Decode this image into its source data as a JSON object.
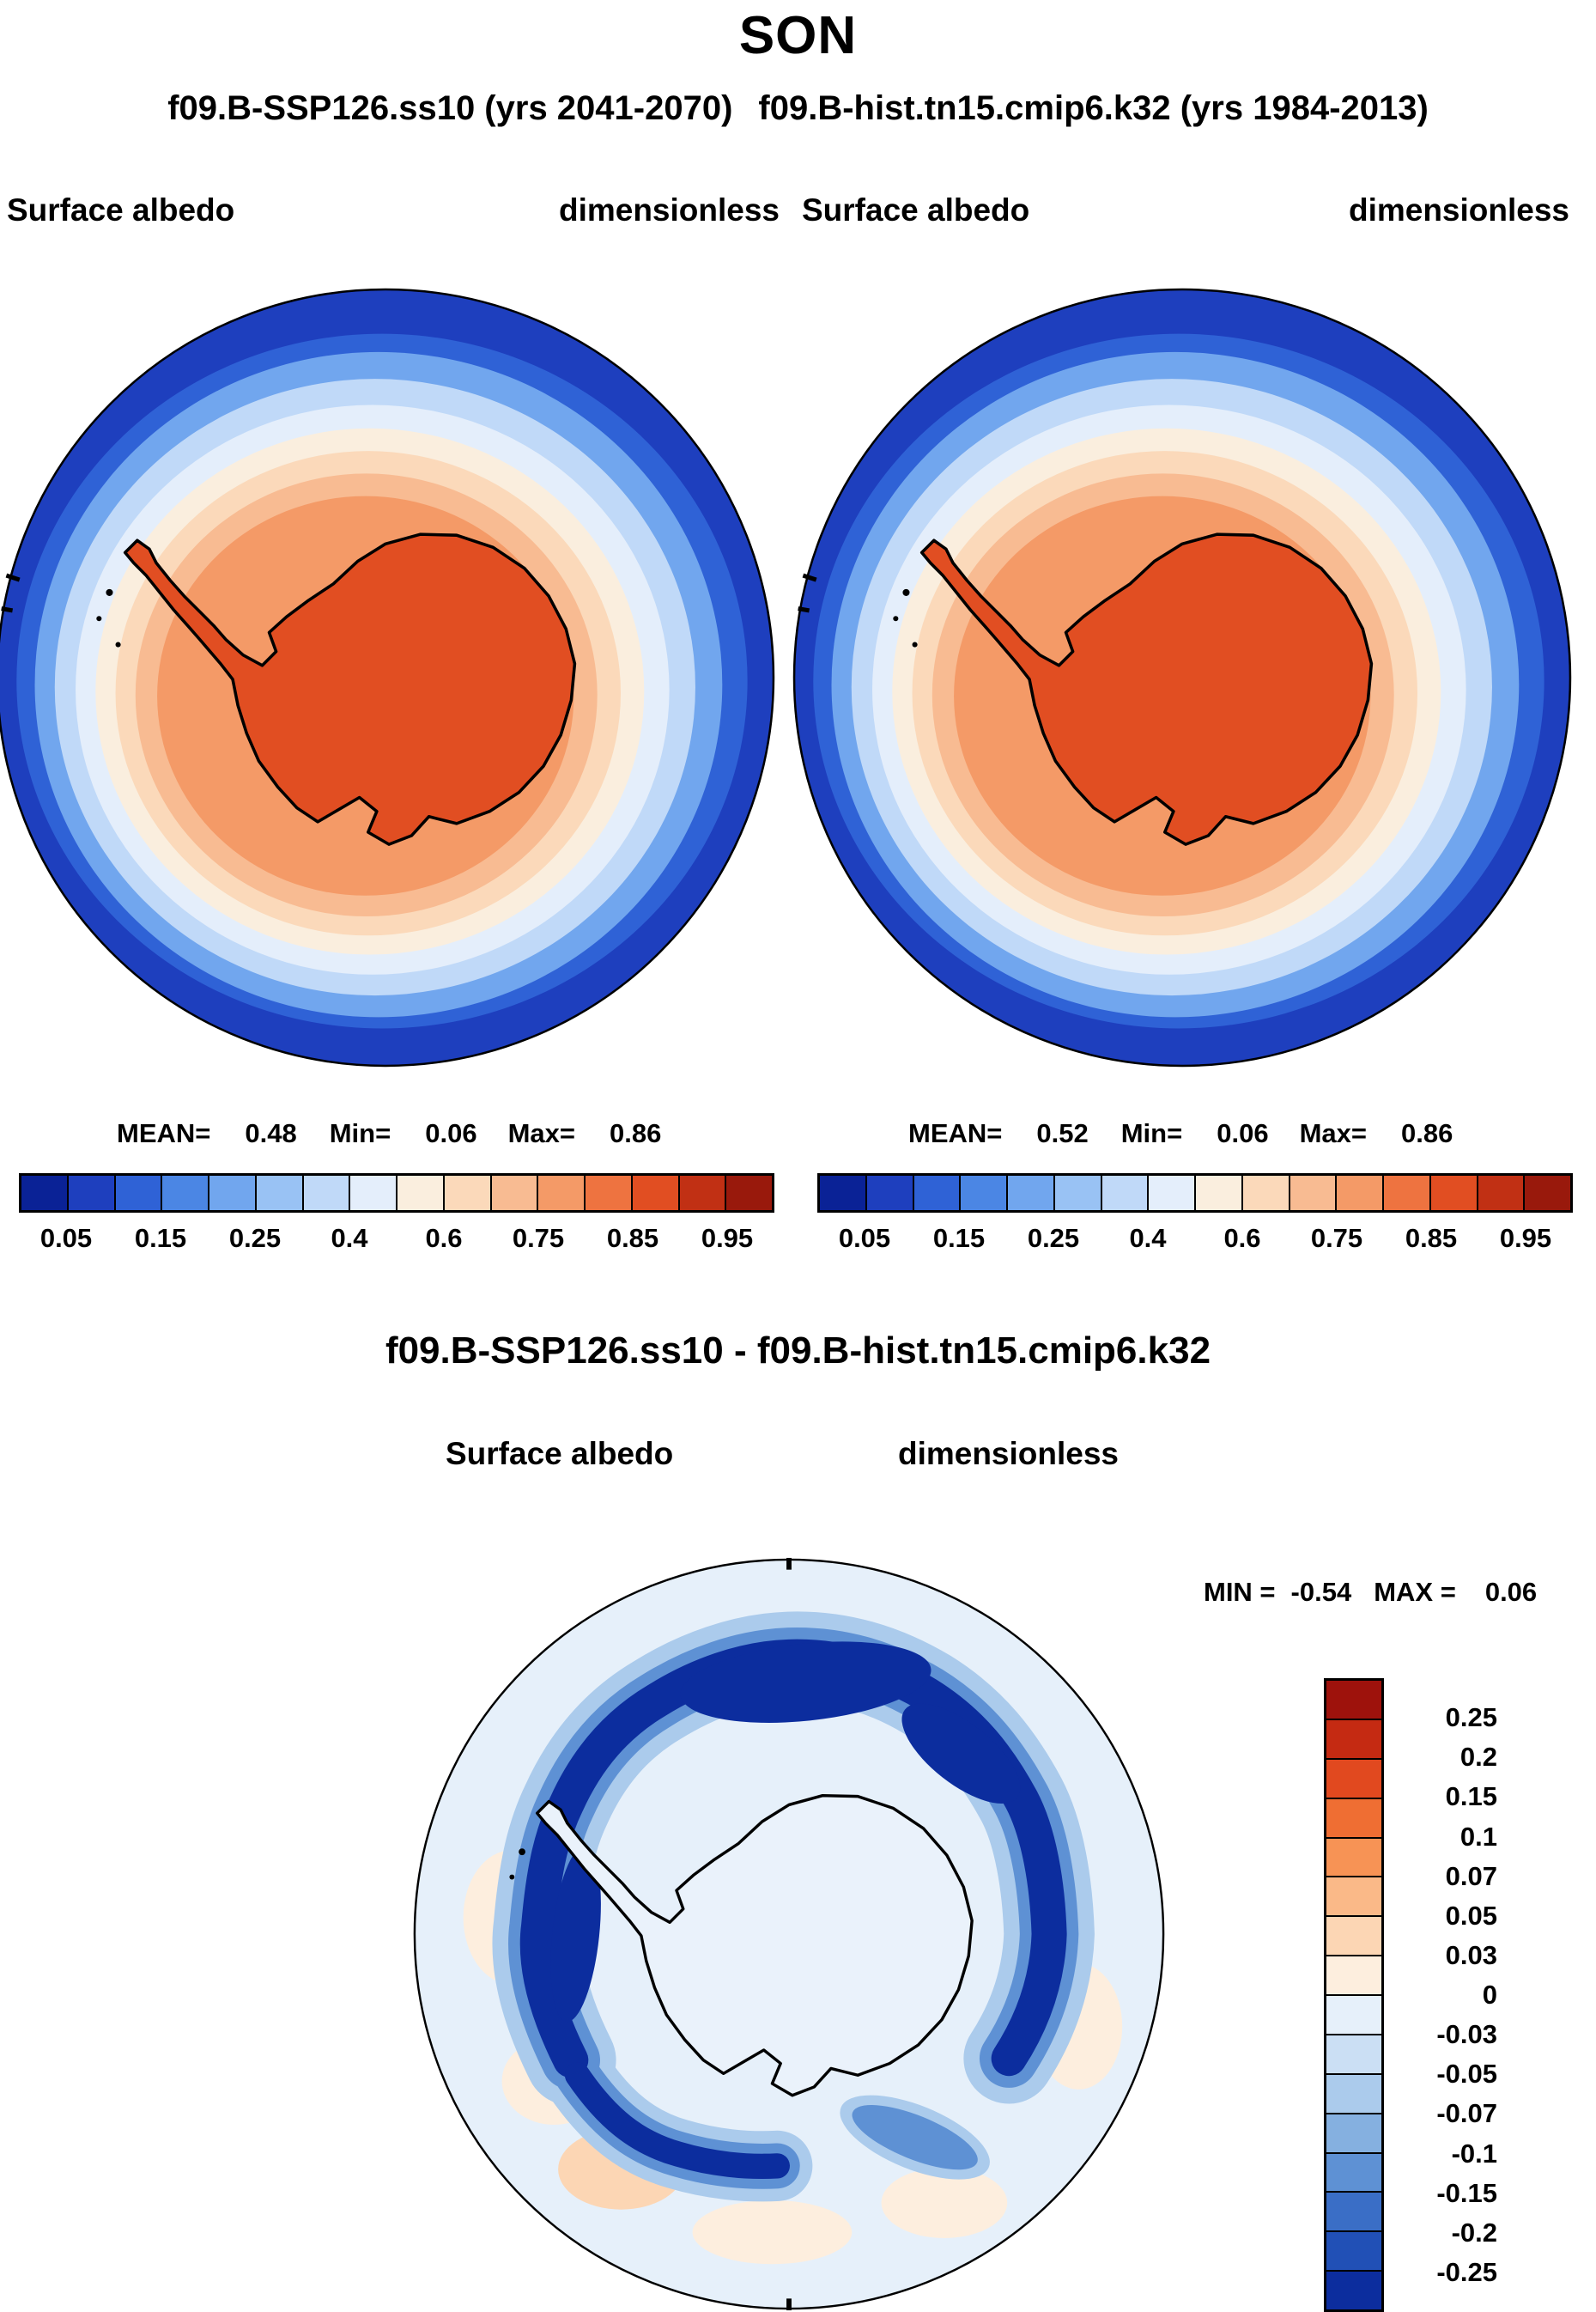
{
  "page": {
    "title": "SON",
    "subtitle_left": "f09.B-SSP126.ss10 (yrs 2041-2070)",
    "subtitle_right": "f09.B-hist.tn15.cmip6.k32 (yrs 1984-2013)"
  },
  "panels": [
    {
      "field_label": "Surface albedo",
      "units_label": "dimensionless",
      "stats": {
        "mean_label": "MEAN=",
        "mean_value": "0.48",
        "min_label": "Min=",
        "min_value": "0.06",
        "max_label": "Max=",
        "max_value": "0.86"
      }
    },
    {
      "field_label": "Surface albedo",
      "units_label": "dimensionless",
      "stats": {
        "mean_label": "MEAN=",
        "mean_value": "0.52",
        "min_label": "Min=",
        "min_value": "0.06",
        "max_label": "Max=",
        "max_value": "0.86"
      }
    }
  ],
  "albedo_colorbar": {
    "colors": [
      "#0a2296",
      "#1e3fbe",
      "#2f62d6",
      "#4b86e4",
      "#71a6ee",
      "#99c2f4",
      "#c0d9f8",
      "#e4eefb",
      "#faeede",
      "#fbd9ba",
      "#f8bb92",
      "#f49a67",
      "#ee7340",
      "#e14e22",
      "#c13014",
      "#99190c"
    ],
    "tick_labels": [
      "0.05",
      "0.15",
      "0.25",
      "0.4",
      "0.6",
      "0.75",
      "0.85",
      "0.95"
    ]
  },
  "diff_section": {
    "title": "f09.B-SSP126.ss10 - f09.B-hist.tn15.cmip6.k32",
    "field_label": "Surface albedo",
    "units_label": "dimensionless",
    "stats": {
      "min_label": "MIN =",
      "min_value": "-0.54",
      "max_label": "MAX =",
      "max_value": "0.06"
    }
  },
  "diff_colorbar": {
    "colors": [
      "#9e120c",
      "#c52a12",
      "#e1491f",
      "#ef6e33",
      "#f79355",
      "#fab988",
      "#fcd6b4",
      "#fdeede",
      "#e6f0fa",
      "#cbdff4",
      "#abcbec",
      "#85b0e0",
      "#5e91d4",
      "#3a6ec6",
      "#2150b6",
      "#0c2d9e"
    ],
    "tick_labels": [
      "0.25",
      "0.2",
      "0.15",
      "0.1",
      "0.07",
      "0.05",
      "0.03",
      "0",
      "-0.03",
      "-0.05",
      "-0.07",
      "-0.1",
      "-0.15",
      "-0.2",
      "-0.25"
    ]
  },
  "chart_data": [
    {
      "type": "heatmap",
      "subtype": "south_polar_stereographic_contour_map",
      "season": "SON",
      "title": "f09.B-SSP126.ss10 (yrs 2041-2070)",
      "variable": "Surface albedo",
      "units": "dimensionless",
      "region": "Antarctica and Southern Ocean",
      "stats": {
        "mean": 0.48,
        "min": 0.06,
        "max": 0.86
      },
      "colorbar_ticks": [
        0.05,
        0.15,
        0.25,
        0.4,
        0.6,
        0.75,
        0.85,
        0.95
      ],
      "colorbar_cells": 16,
      "legend_position": "bottom",
      "description": "Open ocean low albedo (~0.06, dark blue) surrounding sea-ice pack (~0.6-0.8, salmon/orange) and Antarctic ice sheet (~0.8+, deep orange), continent coastline drawn in black"
    },
    {
      "type": "heatmap",
      "subtype": "south_polar_stereographic_contour_map",
      "season": "SON",
      "title": "f09.B-hist.tn15.cmip6.k32 (yrs 1984-2013)",
      "variable": "Surface albedo",
      "units": "dimensionless",
      "region": "Antarctica and Southern Ocean",
      "stats": {
        "mean": 0.52,
        "min": 0.06,
        "max": 0.86
      },
      "colorbar_ticks": [
        0.05,
        0.15,
        0.25,
        0.4,
        0.6,
        0.75,
        0.85,
        0.95
      ],
      "colorbar_cells": 16,
      "legend_position": "bottom",
      "description": "Same layout as SSP126 panel; historical run shows slightly broader high-albedo sea-ice ring"
    },
    {
      "type": "heatmap",
      "subtype": "south_polar_stereographic_contour_map",
      "season": "SON",
      "title": "f09.B-SSP126.ss10 - f09.B-hist.tn15.cmip6.k32",
      "variable": "Surface albedo difference",
      "units": "dimensionless",
      "region": "Antarctica and Southern Ocean",
      "stats": {
        "min": -0.54,
        "max": 0.06
      },
      "colorbar_ticks": [
        0.25,
        0.2,
        0.15,
        0.1,
        0.07,
        0.05,
        0.03,
        0,
        -0.03,
        -0.05,
        -0.07,
        -0.1,
        -0.15,
        -0.2,
        -0.25
      ],
      "colorbar_cells": 16,
      "legend_position": "right",
      "description": "Mostly weak negative differences (pale blue) with strong negative ring (dark blue, up to -0.54) along retreating sea-ice edge, scattered weak positive patches (pale orange) near domain rim"
    }
  ]
}
